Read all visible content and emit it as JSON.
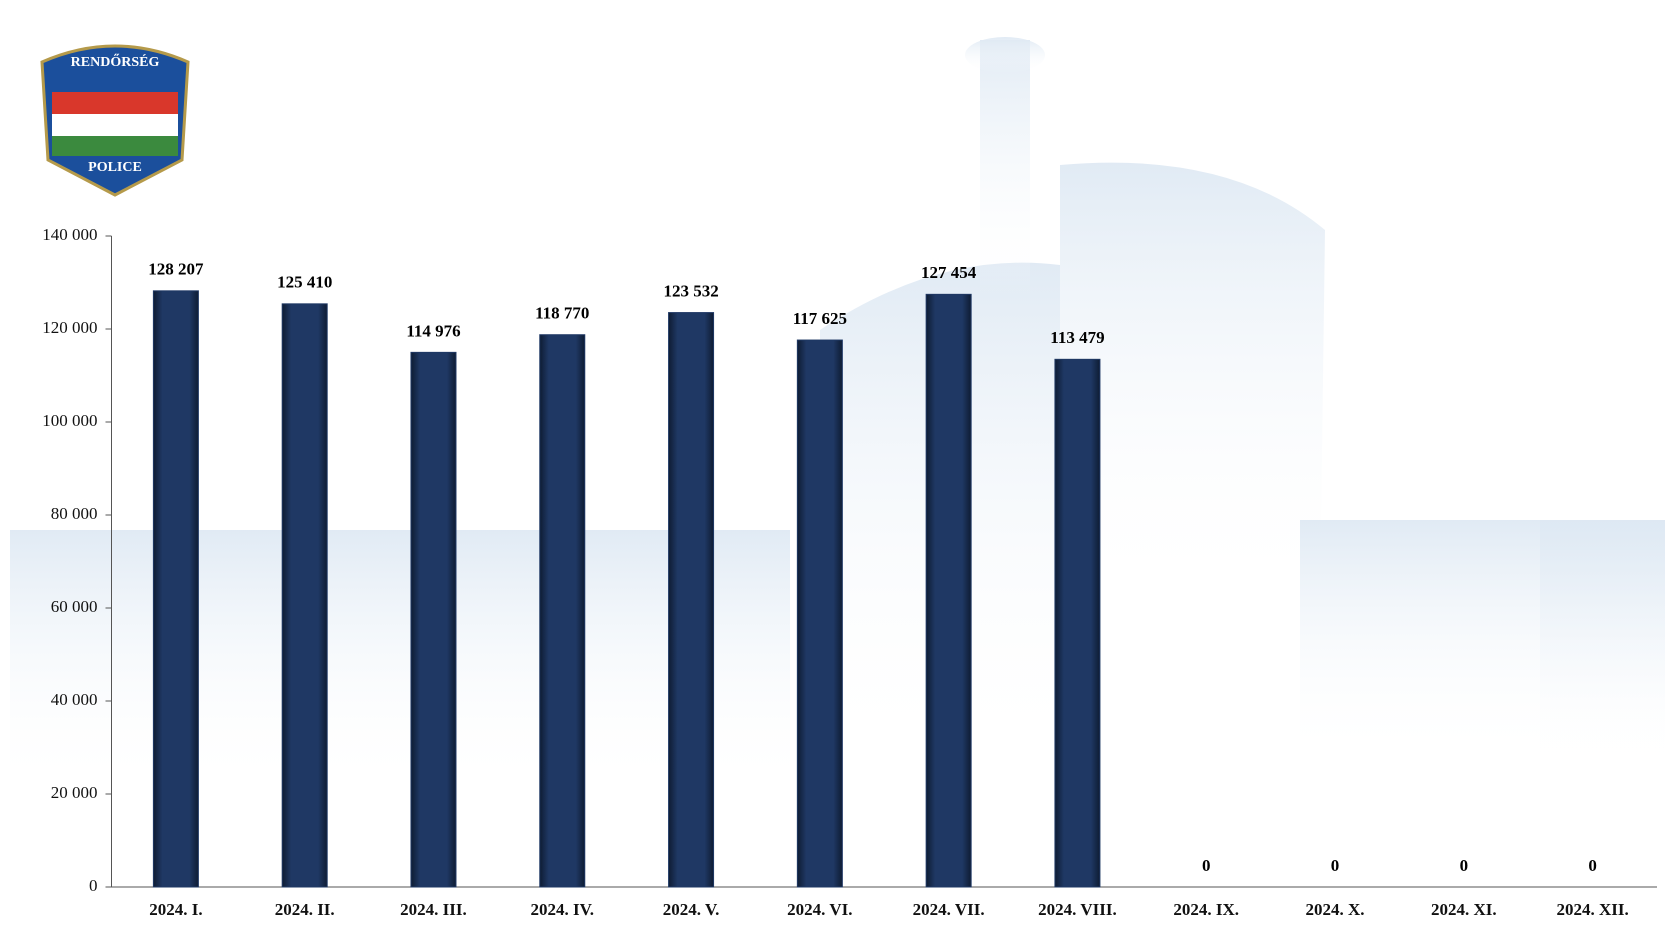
{
  "logo": {
    "top": "RENDŐRSÉG",
    "bottom": "POLICE"
  },
  "chart_data": {
    "type": "bar",
    "categories": [
      "2024. I.",
      "2024. II.",
      "2024. III.",
      "2024. IV.",
      "2024. V.",
      "2024. VI.",
      "2024. VII.",
      "2024. VIII.",
      "2024. IX.",
      "2024. X.",
      "2024. XI.",
      "2024. XII."
    ],
    "values": [
      128207,
      125410,
      114976,
      118770,
      123532,
      117625,
      127454,
      113479,
      0,
      0,
      0,
      0
    ],
    "value_labels": [
      "128 207",
      "125 410",
      "114 976",
      "118 770",
      "123 532",
      "117 625",
      "127 454",
      "113 479",
      "0",
      "0",
      "0",
      "0"
    ],
    "color": "#1f3864",
    "ylim": [
      0,
      140000
    ],
    "yticks": [
      0,
      {
        "value": 20000,
        "label": "20 000"
      },
      {
        "value": 40000,
        "label": "40 000"
      },
      {
        "value": 60000,
        "label": "60 000"
      },
      {
        "value": 80000,
        "label": "80 000"
      },
      {
        "value": 100000,
        "label": "100 000"
      },
      {
        "value": 120000,
        "label": "120 000"
      },
      {
        "value": 140000,
        "label": "140 000"
      }
    ]
  }
}
